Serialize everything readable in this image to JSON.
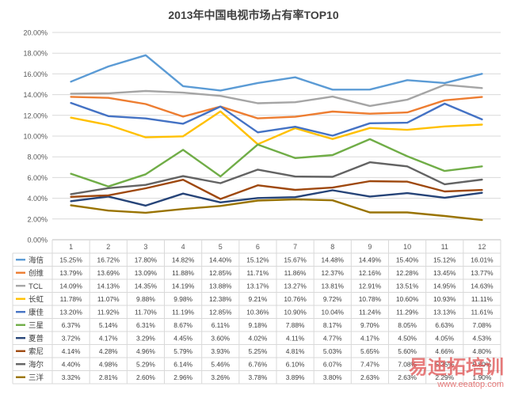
{
  "chart_data": {
    "type": "line",
    "title": "2013年中国电视市场占有率TOP10",
    "categories": [
      "1",
      "2",
      "3",
      "4",
      "5",
      "6",
      "7",
      "8",
      "9",
      "10",
      "11",
      "12"
    ],
    "ylim": [
      0,
      20
    ],
    "y_ticks": [
      "0.00%",
      "2.00%",
      "4.00%",
      "6.00%",
      "8.00%",
      "10.00%",
      "12.00%",
      "14.00%",
      "16.00%",
      "18.00%",
      "20.00%"
    ],
    "grid": true,
    "legend": "data-table-below",
    "series": [
      {
        "name": "海信",
        "color": "#5b9bd5",
        "values": [
          15.25,
          16.72,
          17.8,
          14.82,
          14.4,
          15.12,
          15.67,
          14.48,
          14.49,
          15.4,
          15.12,
          16.01
        ],
        "labels": [
          "15.25%",
          "16.72%",
          "17.80%",
          "14.82%",
          "14.40%",
          "15.12%",
          "15.67%",
          "14.48%",
          "14.49%",
          "15.40%",
          "15.12%",
          "16.01%"
        ]
      },
      {
        "name": "创维",
        "color": "#ed7d31",
        "values": [
          13.79,
          13.69,
          13.09,
          11.88,
          12.85,
          11.71,
          11.86,
          12.37,
          12.16,
          12.28,
          13.45,
          13.77
        ],
        "labels": [
          "13.79%",
          "13.69%",
          "13.09%",
          "11.88%",
          "12.85%",
          "11.71%",
          "11.86%",
          "12.37%",
          "12.16%",
          "12.28%",
          "13.45%",
          "13.77%"
        ]
      },
      {
        "name": "TCL",
        "color": "#a5a5a5",
        "values": [
          14.09,
          14.13,
          14.35,
          14.19,
          13.88,
          13.17,
          13.27,
          13.81,
          12.91,
          13.51,
          14.95,
          14.63
        ],
        "labels": [
          "14.09%",
          "14.13%",
          "14.35%",
          "14.19%",
          "13.88%",
          "13.17%",
          "13.27%",
          "13.81%",
          "12.91%",
          "13.51%",
          "14.95%",
          "14.63%"
        ]
      },
      {
        "name": "长虹",
        "color": "#ffc000",
        "values": [
          11.78,
          11.07,
          9.88,
          9.98,
          12.38,
          9.21,
          10.76,
          9.72,
          10.78,
          10.6,
          10.93,
          11.11
        ],
        "labels": [
          "11.78%",
          "11.07%",
          "9.88%",
          "9.98%",
          "12.38%",
          "9.21%",
          "10.76%",
          "9.72%",
          "10.78%",
          "10.60%",
          "10.93%",
          "11.11%"
        ]
      },
      {
        "name": "康佳",
        "color": "#4472c4",
        "values": [
          13.2,
          11.92,
          11.7,
          11.19,
          12.85,
          10.36,
          10.9,
          10.04,
          11.24,
          11.29,
          13.13,
          11.61
        ],
        "labels": [
          "13.20%",
          "11.92%",
          "11.70%",
          "11.19%",
          "12.85%",
          "10.36%",
          "10.90%",
          "10.04%",
          "11.24%",
          "11.29%",
          "13.13%",
          "11.61%"
        ]
      },
      {
        "name": "三星",
        "color": "#70ad47",
        "values": [
          6.37,
          5.14,
          6.31,
          8.67,
          6.11,
          9.18,
          7.88,
          8.17,
          9.7,
          8.05,
          6.63,
          7.08
        ],
        "labels": [
          "6.37%",
          "5.14%",
          "6.31%",
          "8.67%",
          "6.11%",
          "9.18%",
          "7.88%",
          "8.17%",
          "9.70%",
          "8.05%",
          "6.63%",
          "7.08%"
        ]
      },
      {
        "name": "夏普",
        "color": "#264478",
        "values": [
          3.72,
          4.17,
          3.29,
          4.45,
          3.6,
          4.02,
          4.11,
          4.77,
          4.17,
          4.5,
          4.05,
          4.53
        ],
        "labels": [
          "3.72%",
          "4.17%",
          "3.29%",
          "4.45%",
          "3.60%",
          "4.02%",
          "4.11%",
          "4.77%",
          "4.17%",
          "4.50%",
          "4.05%",
          "4.53%"
        ]
      },
      {
        "name": "索尼",
        "color": "#9e480e",
        "values": [
          4.14,
          4.28,
          4.96,
          5.79,
          3.93,
          5.25,
          4.81,
          5.03,
          5.65,
          5.6,
          4.66,
          4.8
        ],
        "labels": [
          "4.14%",
          "4.28%",
          "4.96%",
          "5.79%",
          "3.93%",
          "5.25%",
          "4.81%",
          "5.03%",
          "5.65%",
          "5.60%",
          "4.66%",
          "4.80%"
        ]
      },
      {
        "name": "海尔",
        "color": "#636363",
        "values": [
          4.4,
          4.98,
          5.29,
          6.14,
          5.46,
          6.76,
          6.1,
          6.07,
          7.47,
          7.08,
          5.35,
          5.8
        ],
        "labels": [
          "4.40%",
          "4.98%",
          "5.29%",
          "6.14%",
          "5.46%",
          "6.76%",
          "6.10%",
          "6.07%",
          "7.47%",
          "7.08%",
          "5.35%",
          "5.80%"
        ]
      },
      {
        "name": "三洋",
        "color": "#997300",
        "values": [
          3.32,
          2.81,
          2.6,
          2.96,
          3.26,
          3.78,
          3.89,
          3.8,
          2.63,
          2.63,
          2.29,
          1.9
        ],
        "labels": [
          "3.32%",
          "2.81%",
          "2.60%",
          "2.96%",
          "3.26%",
          "3.78%",
          "3.89%",
          "3.80%",
          "2.63%",
          "2.63%",
          "2.29%",
          "1.90%"
        ]
      }
    ]
  },
  "watermark": {
    "text_cn": "易迪拓培训",
    "text_url": "www.eeatop.com"
  }
}
